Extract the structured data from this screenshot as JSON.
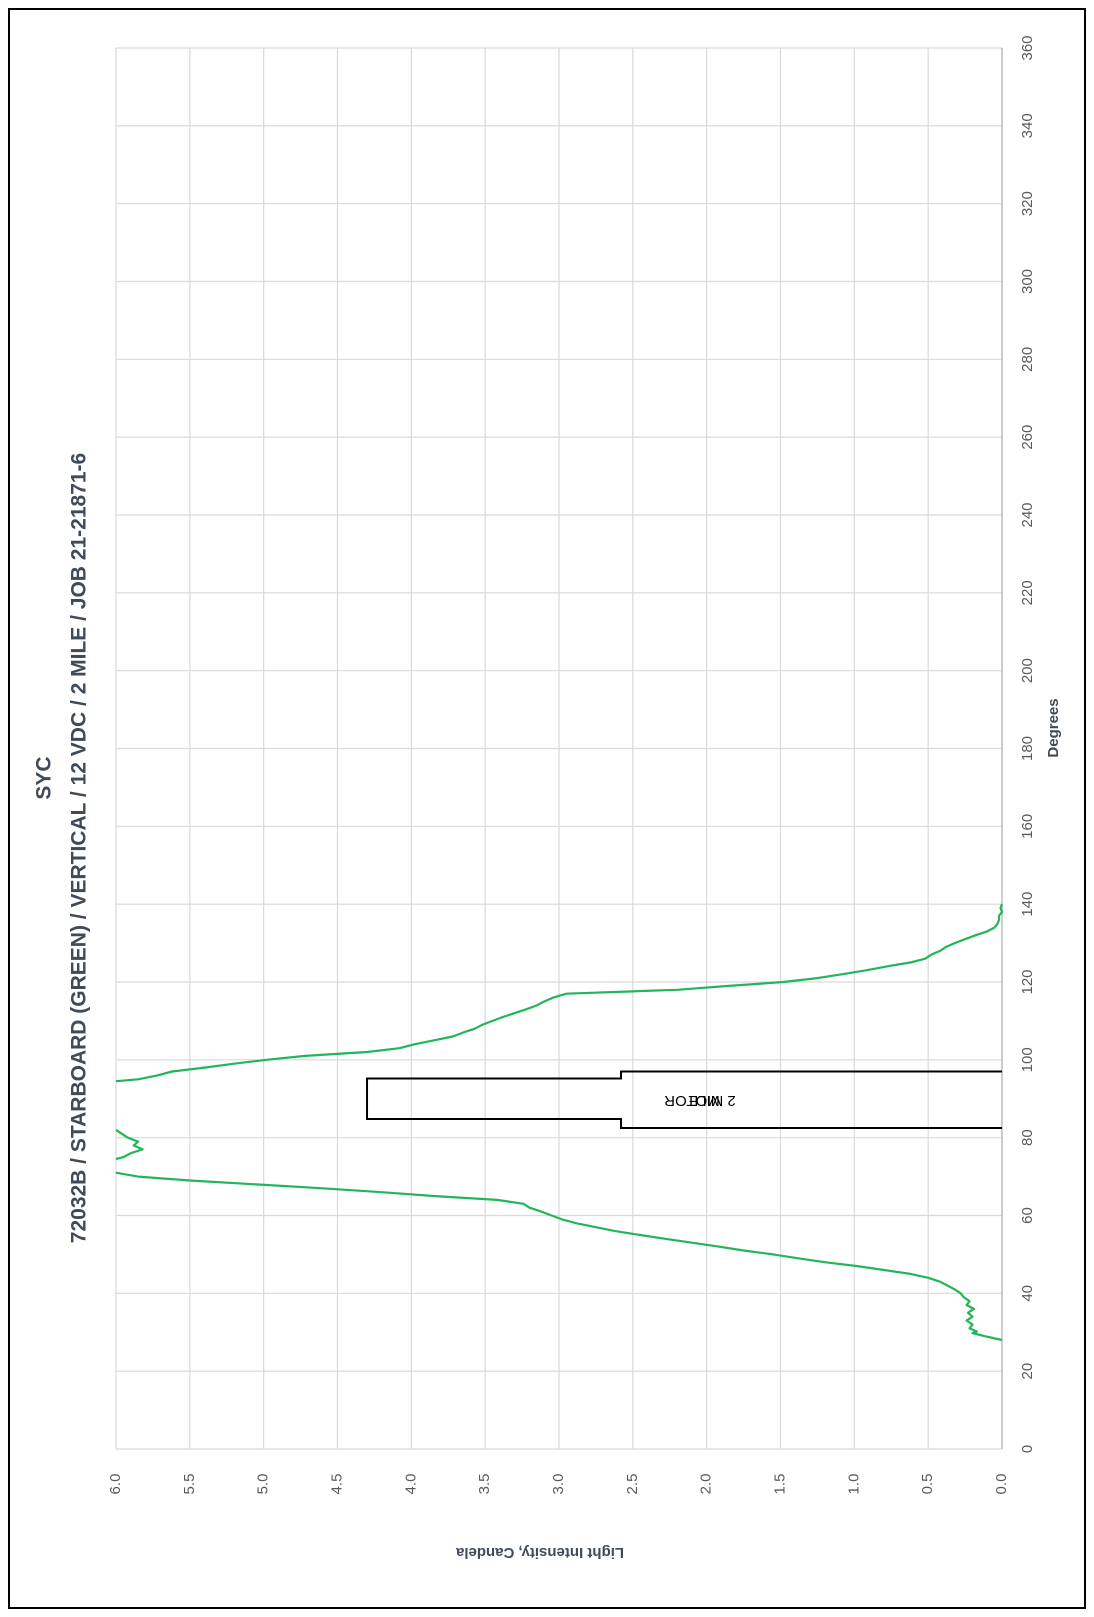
{
  "chart_data": {
    "type": "line",
    "title": "SYC",
    "subtitle": "72032B / STARBOARD (GREEN) / VERTICAL / 12 VDC / 2 MILE / JOB 21-21871-6",
    "xlabel": "Degrees",
    "ylabel": "Light Intensity, Candela",
    "xlim": [
      0,
      360
    ],
    "ylim": [
      0,
      6
    ],
    "x_ticks": [
      "0",
      "20",
      "40",
      "60",
      "80",
      "100",
      "120",
      "140",
      "160",
      "180",
      "200",
      "220",
      "240",
      "260",
      "280",
      "300",
      "320",
      "340",
      "360"
    ],
    "y_ticks": [
      "0.0",
      "0.5",
      "1.0",
      "1.5",
      "2.0",
      "2.5",
      "3.0",
      "3.5",
      "4.0",
      "4.5",
      "5.0",
      "5.5",
      "6.0"
    ],
    "grid": true,
    "line_color": "#22b55a",
    "annotation": {
      "lines": [
        "2 MILE",
        "MOTOR"
      ]
    },
    "series": [
      {
        "values": [
          [
            28,
            0.0
          ],
          [
            29,
            0.12
          ],
          [
            29.8,
            0.2
          ],
          [
            30.2,
            0.17
          ],
          [
            31,
            0.22
          ],
          [
            32,
            0.2
          ],
          [
            33,
            0.24
          ],
          [
            34,
            0.2
          ],
          [
            35,
            0.23
          ],
          [
            36,
            0.19
          ],
          [
            37,
            0.24
          ],
          [
            38,
            0.22
          ],
          [
            39,
            0.26
          ],
          [
            40,
            0.28
          ],
          [
            41,
            0.32
          ],
          [
            42,
            0.37
          ],
          [
            43,
            0.42
          ],
          [
            44,
            0.5
          ],
          [
            45,
            0.62
          ],
          [
            46,
            0.8
          ],
          [
            47,
            0.98
          ],
          [
            48,
            1.2
          ],
          [
            49,
            1.38
          ],
          [
            50,
            1.55
          ],
          [
            51,
            1.75
          ],
          [
            52,
            1.92
          ],
          [
            53,
            2.1
          ],
          [
            54,
            2.28
          ],
          [
            55,
            2.45
          ],
          [
            56,
            2.62
          ],
          [
            57,
            2.75
          ],
          [
            58,
            2.88
          ],
          [
            59,
            2.98
          ],
          [
            60,
            3.05
          ],
          [
            61,
            3.12
          ],
          [
            62,
            3.2
          ],
          [
            63,
            3.24
          ],
          [
            64,
            3.42
          ],
          [
            65,
            3.85
          ],
          [
            66,
            4.2
          ],
          [
            67,
            4.6
          ],
          [
            68,
            5.05
          ],
          [
            69,
            5.5
          ],
          [
            70,
            5.85
          ],
          [
            71,
            6.0
          ]
        ]
      },
      {
        "values": [
          [
            74.5,
            6.0
          ],
          [
            75,
            5.95
          ],
          [
            76,
            5.9
          ],
          [
            77,
            5.82
          ],
          [
            78,
            5.88
          ],
          [
            79,
            5.85
          ],
          [
            80,
            5.92
          ],
          [
            81,
            5.96
          ],
          [
            82,
            6.0
          ]
        ]
      },
      {
        "values": [
          [
            94.5,
            6.0
          ],
          [
            95,
            5.85
          ],
          [
            96,
            5.72
          ],
          [
            97,
            5.62
          ],
          [
            98,
            5.4
          ],
          [
            99,
            5.2
          ],
          [
            100,
            4.98
          ],
          [
            101,
            4.72
          ],
          [
            102,
            4.3
          ],
          [
            103,
            4.08
          ],
          [
            104,
            3.98
          ],
          [
            105,
            3.85
          ],
          [
            106,
            3.72
          ],
          [
            107,
            3.65
          ],
          [
            108,
            3.57
          ],
          [
            109,
            3.52
          ],
          [
            110,
            3.45
          ],
          [
            111,
            3.38
          ],
          [
            112,
            3.3
          ],
          [
            113,
            3.22
          ],
          [
            114,
            3.15
          ],
          [
            115,
            3.1
          ],
          [
            116,
            3.04
          ],
          [
            117,
            2.95
          ],
          [
            118,
            2.2
          ],
          [
            119,
            1.85
          ],
          [
            120,
            1.48
          ],
          [
            121,
            1.25
          ],
          [
            122,
            1.08
          ],
          [
            123,
            0.92
          ],
          [
            124,
            0.78
          ],
          [
            125,
            0.62
          ],
          [
            126,
            0.52
          ],
          [
            127,
            0.48
          ],
          [
            128,
            0.42
          ],
          [
            129,
            0.38
          ],
          [
            130,
            0.32
          ],
          [
            131,
            0.25
          ],
          [
            132,
            0.18
          ],
          [
            133,
            0.1
          ],
          [
            134,
            0.05
          ],
          [
            135,
            0.03
          ],
          [
            136,
            0.02
          ],
          [
            137,
            0.02
          ],
          [
            138,
            0.0
          ],
          [
            139,
            0.01
          ],
          [
            140,
            0.0
          ]
        ]
      }
    ]
  }
}
